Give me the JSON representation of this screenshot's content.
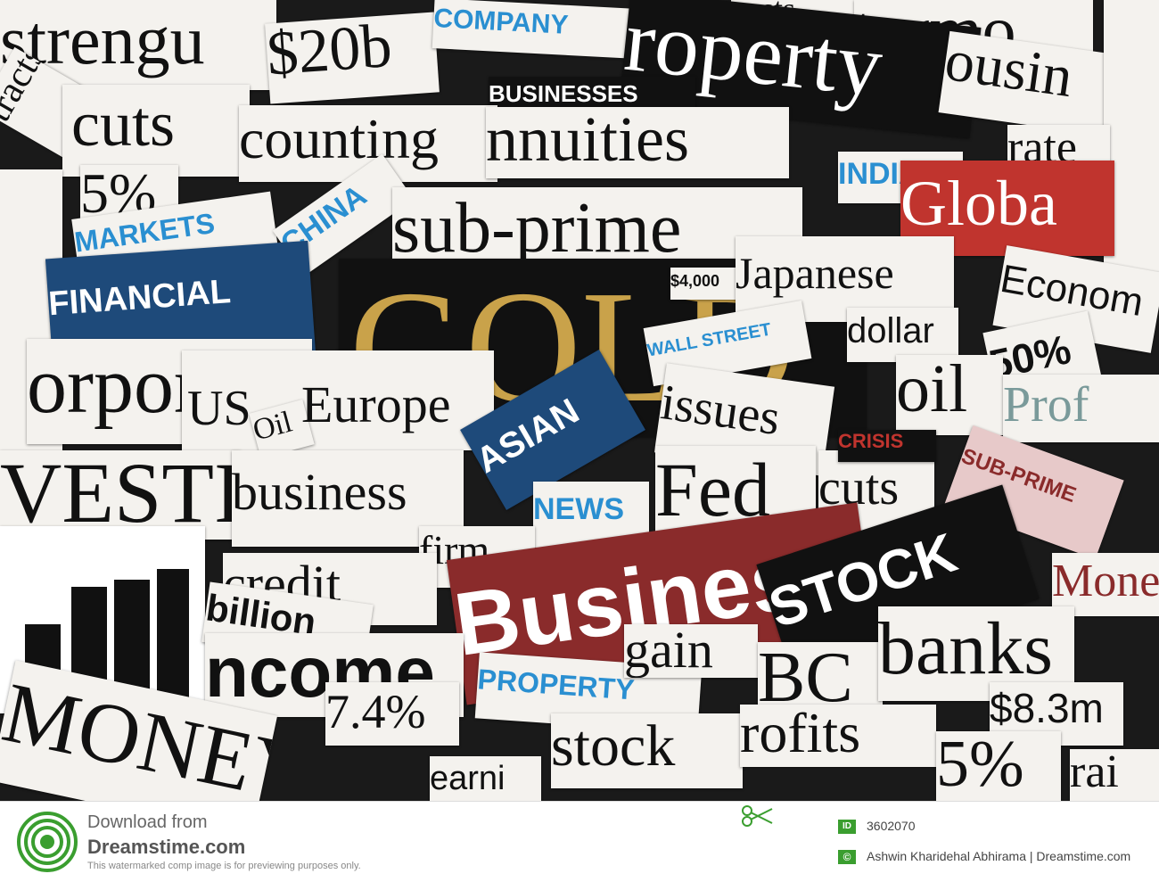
{
  "collage": {
    "words": [
      "strengu",
      "$20b",
      "COMPANY",
      "costs",
      "turmo",
      "roperty",
      "BUSINESSES",
      "ousin",
      "cuts",
      "counting",
      "nnuities",
      "rate",
      "5%",
      "MARKETS",
      "CHINA",
      "sub-prime",
      "INDIA",
      "Globa",
      "FINANCIAL",
      "GOLD",
      "$4,000",
      "Japanese",
      "Econom",
      "WALL STREET",
      "dollar",
      "50%",
      "orporate",
      "US",
      "Oil",
      "Europe",
      "ASIAN",
      "issues",
      "oil",
      "Prof",
      "VESTING",
      "business",
      "NEWS",
      "Fed",
      "cuts",
      "CRISIS",
      "SUB-PRIME",
      "firm",
      "credit",
      "Business",
      "STOCK",
      "Mone",
      "billion",
      "ncome",
      "PROPERTY",
      "banks",
      "7.4%",
      "stock",
      "$8.3m",
      "MONEY",
      "earni",
      "rofits",
      "5%",
      "rai",
      "BC",
      "usiness",
      "tracts",
      "gain"
    ]
  },
  "footer": {
    "download_from": "Download from",
    "brand": "Dreamstime.com",
    "disclaimer": "This watermarked comp image is for previewing purposes only.",
    "id_label": "ID",
    "id_value": "3602070",
    "credit": "Ashwin Kharidehal Abhirama | Dreamstime.com"
  },
  "colors": {
    "accent_blue": "#2a8fd1",
    "brand_green": "#3a9e2f",
    "dark_red": "#8a2b2b",
    "navy": "#1e4a7a"
  }
}
